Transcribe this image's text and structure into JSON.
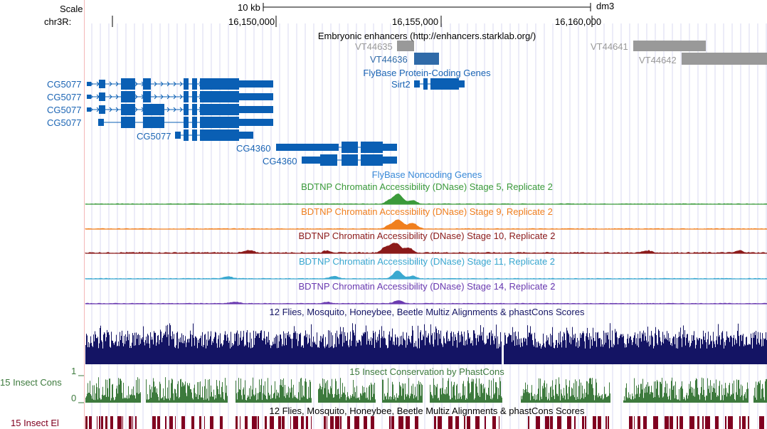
{
  "ruler": {
    "scale_label": "Scale",
    "scale_value": "10 kb",
    "assembly": "dm3",
    "chrom_label": "chr3R:",
    "positions": [
      "16,150,000",
      "16,155,000",
      "16,160,000"
    ]
  },
  "tracks": {
    "enhancers": {
      "title": "Embryonic enhancers (http://enhancers.starklab.org/)",
      "items": [
        "VT44635",
        "VT44636",
        "VT44641",
        "VT44642"
      ]
    },
    "flybase_coding": {
      "title": "FlyBase Protein-Coding Genes",
      "genes": [
        "CG5077",
        "CG5077",
        "CG5077",
        "CG5077",
        "CG5077",
        "CG4360",
        "CG4360",
        "Sirt2"
      ]
    },
    "flybase_noncoding": {
      "title": "FlyBase Noncoding Genes"
    },
    "dnase": [
      {
        "title": "BDTNP Chromatin Accessibility (DNase) Stage 5, Replicate 2",
        "color": "#3a9a3a"
      },
      {
        "title": "BDTNP Chromatin Accessibility (DNase) Stage 9, Replicate 2",
        "color": "#f07f1e"
      },
      {
        "title": "BDTNP Chromatin Accessibility (DNase) Stage 10, Replicate 2",
        "color": "#8b1a1a"
      },
      {
        "title": "BDTNP Chromatin Accessibility (DNase) Stage 11, Replicate 2",
        "color": "#3aa8d0"
      },
      {
        "title": "BDTNP Chromatin Accessibility (DNase) Stage 14, Replicate 2",
        "color": "#6a3ab0"
      }
    ],
    "multiz": {
      "title": "12 Flies, Mosquito, Honeybee, Beetle Multiz Alignments & phastCons Scores",
      "color": "#141464"
    },
    "phastcons": {
      "title": "15 Insect Conservation by PhastCons",
      "left_label": "15 Insect Cons",
      "axis_max": "1",
      "axis_min": "0",
      "color": "#3d7a3d"
    },
    "multiz2": {
      "title": "12 Flies, Mosquito, Honeybee, Beetle Multiz Alignments & phastCons Scores"
    },
    "elements": {
      "left_label": "15 Insect El",
      "color": "#800020"
    }
  },
  "colors": {
    "gene_blue": "#0a5fb4",
    "gene_label_blue": "#1a64b4",
    "enhancer_gray": "#999999",
    "enhancer_blue": "#2f6aa8",
    "grid": "#d8d8f0",
    "left_border": "#f4b8b8"
  }
}
